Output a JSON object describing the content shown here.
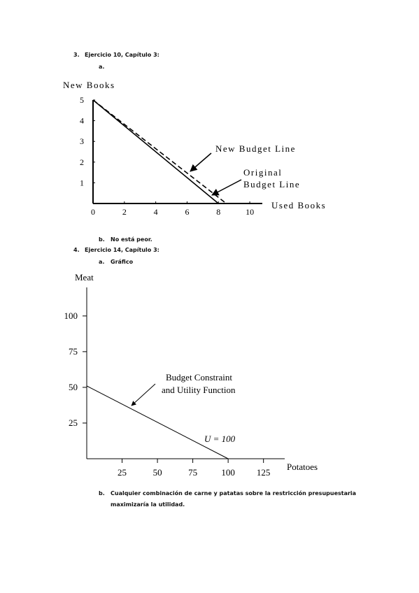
{
  "document": {
    "q3": {
      "number": "3.",
      "title": "Ejercicio 10, Capítulo 3:",
      "a": "a.",
      "b_label": "b.",
      "b": "No está peor."
    },
    "q4": {
      "number": "4.",
      "title": "Ejercicio 14, Capítulo 3:",
      "a_label": "a.",
      "a": "Gráfico",
      "b_label": "b.",
      "b": [
        "Cualquier combinación de carne y patatas sobre la restricción presupuestaria",
        "maximizaría la utilidad."
      ]
    }
  },
  "chart_data": [
    {
      "type": "line",
      "y_label": "New Books",
      "x_label": "Used Books",
      "xlim": [
        0,
        10.8
      ],
      "ylim": [
        0,
        5
      ],
      "xticks": [
        0,
        2,
        4,
        6,
        8,
        10
      ],
      "yticks": [
        1,
        2,
        3,
        4,
        5
      ],
      "annotations": [
        "New Budget Line",
        "Original",
        "Budget Line"
      ],
      "series": [
        {
          "x": [
            0,
            8
          ],
          "values": [
            5,
            0
          ],
          "color": "#000000",
          "dashed": false
        },
        {
          "x": [
            0,
            8.5
          ],
          "values": [
            5,
            0
          ],
          "color": "#000000",
          "dashed": true
        }
      ]
    },
    {
      "type": "line",
      "y_label": "Meat",
      "x_label": "Potatoes",
      "xlim": [
        0,
        140
      ],
      "ylim": [
        0,
        120
      ],
      "xticks": [
        25,
        50,
        75,
        100,
        125
      ],
      "yticks": [
        25,
        50,
        75,
        100
      ],
      "annotations": [
        "Budget Constraint",
        "and Utility Function",
        "U = 100"
      ],
      "series": [
        {
          "x": [
            0,
            100
          ],
          "values": [
            51,
            0
          ],
          "color": "#000000",
          "dashed": false
        }
      ]
    }
  ]
}
